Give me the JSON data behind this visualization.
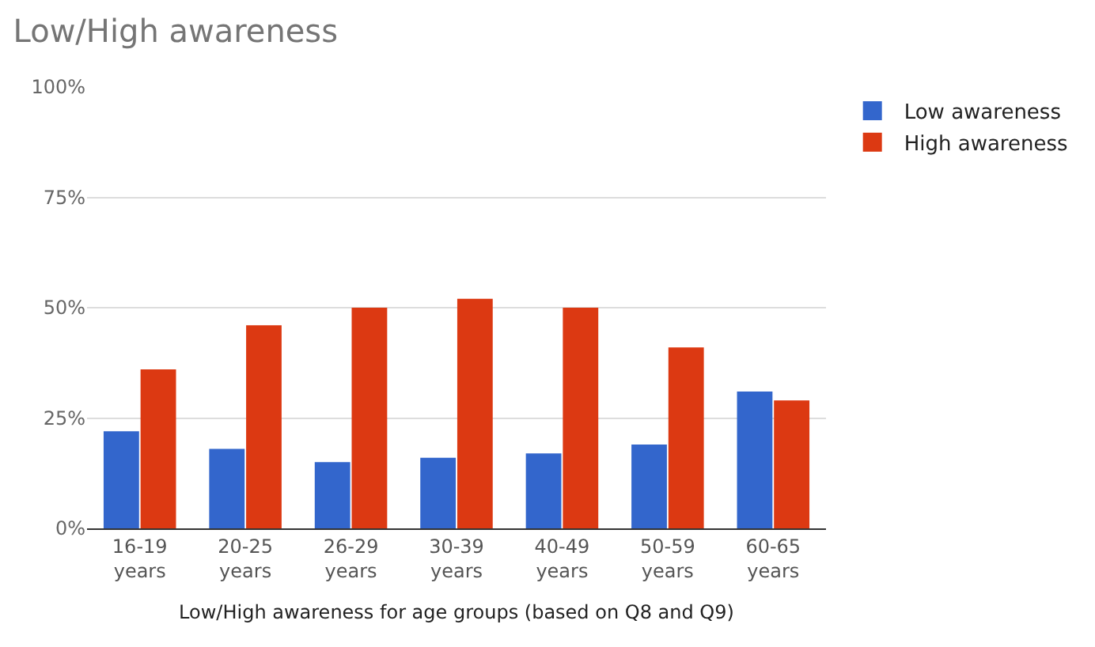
{
  "chart_data": {
    "type": "bar",
    "title": "Low/High awareness",
    "xlabel": "Low/High awareness for age groups (based on Q8 and Q9)",
    "categories": [
      "16-19 years",
      "20-25 years",
      "26-29 years",
      "30-39 years",
      "40-49 years",
      "50-59 years",
      "60-65 years"
    ],
    "series": [
      {
        "name": "Low awareness",
        "color": "#3366cc",
        "values": [
          22,
          18,
          15,
          16,
          17,
          19,
          31
        ]
      },
      {
        "name": "High awareness",
        "color": "#dc3912",
        "values": [
          36,
          46,
          50,
          52,
          50,
          41,
          29
        ]
      }
    ],
    "ylim": [
      0,
      100
    ],
    "yticks": [
      {
        "value": 0,
        "label": "0%"
      },
      {
        "value": 25,
        "label": "25%"
      },
      {
        "value": 50,
        "label": "50%"
      },
      {
        "value": 75,
        "label": "75%"
      },
      {
        "value": 100,
        "label": "100%"
      }
    ],
    "grid": "y",
    "legend": "top right"
  }
}
